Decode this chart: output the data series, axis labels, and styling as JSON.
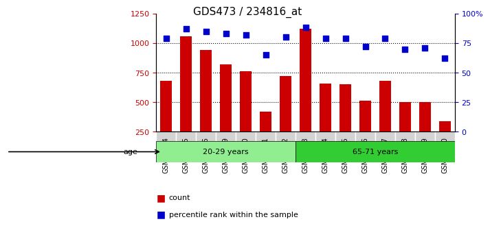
{
  "title": "GDS473 / 234816_at",
  "samples": [
    "GSM10354",
    "GSM10355",
    "GSM10356",
    "GSM10359",
    "GSM10360",
    "GSM10361",
    "GSM10362",
    "GSM10363",
    "GSM10364",
    "GSM10365",
    "GSM10366",
    "GSM10367",
    "GSM10368",
    "GSM10369",
    "GSM10370"
  ],
  "counts": [
    680,
    1060,
    940,
    820,
    760,
    420,
    720,
    1120,
    660,
    650,
    510,
    680,
    500,
    500,
    340
  ],
  "percentile_ranks": [
    79,
    87,
    85,
    83,
    82,
    65,
    80,
    88,
    79,
    79,
    72,
    79,
    70,
    71,
    62
  ],
  "groups": [
    {
      "label": "20-29 years",
      "start": 0,
      "end": 7,
      "color": "#90EE90"
    },
    {
      "label": "65-71 years",
      "start": 7,
      "end": 15,
      "color": "#32CD32"
    }
  ],
  "bar_color": "#CC0000",
  "dot_color": "#0000CC",
  "left_ylim": [
    250,
    1250
  ],
  "left_yticks": [
    250,
    500,
    750,
    1000,
    1250
  ],
  "right_ylim": [
    0,
    100
  ],
  "right_yticks": [
    0,
    25,
    50,
    75,
    100
  ],
  "right_yticklabels": [
    "0",
    "25",
    "50",
    "75",
    "100%"
  ],
  "grid_color": "#000000",
  "background_color": "#FFFFFF",
  "plot_bg_color": "#FFFFFF",
  "tick_bg_color": "#D3D3D3",
  "age_label": "age",
  "legend_items": [
    {
      "label": "count",
      "color": "#CC0000"
    },
    {
      "label": "percentile rank within the sample",
      "color": "#0000CC"
    }
  ]
}
